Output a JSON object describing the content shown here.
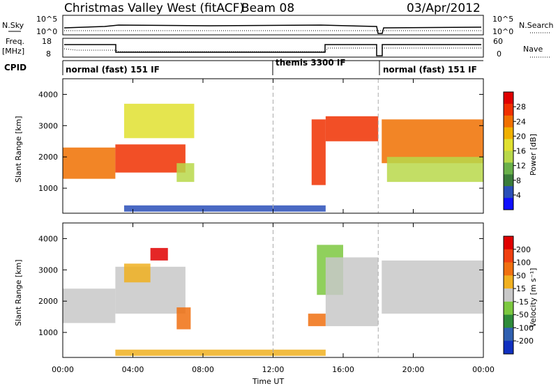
{
  "header": {
    "station": "Christmas Valley West (fitACF)",
    "beam": "Beam 08",
    "date": "03/Apr/2012"
  },
  "summary_panels": {
    "nsky_label": "N.Sky",
    "nsearch_label": "N.Search",
    "noise_ticks": [
      "10^5",
      "10^0"
    ],
    "freq_label_1": "Freq.",
    "freq_label_2": "[MHz]",
    "freq_ticks": [
      "18",
      "8"
    ],
    "nave_label": "Nave",
    "nave_ticks": [
      "60",
      "0"
    ],
    "cpid_label": "CPID",
    "modes": [
      {
        "label": "normal (fast) 151 IF",
        "start_hour": 0,
        "end_hour": 12
      },
      {
        "label": "themis 3300 IF",
        "start_hour": 12,
        "end_hour": 18
      },
      {
        "label": "normal (fast) 151 IF",
        "start_hour": 18,
        "end_hour": 24
      }
    ]
  },
  "chart_data": [
    {
      "type": "heatmap",
      "name": "power",
      "ylabel": "Slant Range [km]",
      "ylim": [
        200,
        4500
      ],
      "yticks": [
        1000,
        2000,
        3000,
        4000
      ],
      "xlim": [
        0,
        24
      ],
      "colorbar_label": "Power [dB]",
      "colorbar_ticks": [
        "28",
        "24",
        "20",
        "16",
        "12",
        "8",
        "4"
      ],
      "colorbar_colors": [
        "#1010ff",
        "#2a4fb8",
        "#3a7c3a",
        "#6ab04a",
        "#b8d84a",
        "#e0e030",
        "#f0b000",
        "#f07000",
        "#f03000",
        "#e00000"
      ],
      "echo_regions": [
        {
          "t": [
            0.0,
            3.0
          ],
          "r": [
            1300,
            2300
          ],
          "level": 7
        },
        {
          "t": [
            3.0,
            7.0
          ],
          "r": [
            1500,
            2400
          ],
          "level": 8
        },
        {
          "t": [
            3.5,
            7.5
          ],
          "r": [
            2600,
            3700
          ],
          "level": 5
        },
        {
          "t": [
            6.5,
            7.5
          ],
          "r": [
            1200,
            1800
          ],
          "level": 4
        },
        {
          "t": [
            14.2,
            15.0
          ],
          "r": [
            1100,
            3200
          ],
          "level": 8
        },
        {
          "t": [
            15.0,
            18.0
          ],
          "r": [
            2500,
            3300
          ],
          "level": 8
        },
        {
          "t": [
            18.2,
            24.0
          ],
          "r": [
            1800,
            3200
          ],
          "level": 7
        },
        {
          "t": [
            18.5,
            24.0
          ],
          "r": [
            1200,
            2000
          ],
          "level": 4
        },
        {
          "t": [
            3.5,
            15.0
          ],
          "r": [
            250,
            450
          ],
          "level": 1
        }
      ]
    },
    {
      "type": "heatmap",
      "name": "velocity",
      "ylabel": "Slant Range [km]",
      "ylim": [
        200,
        4500
      ],
      "yticks": [
        1000,
        2000,
        3000,
        4000
      ],
      "xlim": [
        0,
        24
      ],
      "xlabel": "Time UT",
      "xticks": [
        "00:00",
        "04:00",
        "08:00",
        "12:00",
        "16:00",
        "20:00",
        "00:00"
      ],
      "colorbar_label": "Velocity [m s⁻¹]",
      "colorbar_ticks": [
        "200",
        "100",
        "50",
        "15",
        "-15",
        "-50",
        "-100",
        "-200"
      ],
      "colorbar_colors": [
        "#1030c0",
        "#3060b0",
        "#2e8b3a",
        "#7cc840",
        "#c8c8c8",
        "#f0b020",
        "#f07010",
        "#f04010",
        "#e00000"
      ],
      "echo_regions": [
        {
          "t": [
            0.0,
            3.0
          ],
          "r": [
            1300,
            2400
          ],
          "level": 4
        },
        {
          "t": [
            3.0,
            7.0
          ],
          "r": [
            1600,
            3100
          ],
          "level": 4
        },
        {
          "t": [
            3.5,
            5.0
          ],
          "r": [
            2600,
            3200
          ],
          "level": 5
        },
        {
          "t": [
            5.0,
            6.0
          ],
          "r": [
            3300,
            3700
          ],
          "level": 8
        },
        {
          "t": [
            6.5,
            7.3
          ],
          "r": [
            1100,
            1800
          ],
          "level": 6
        },
        {
          "t": [
            14.0,
            15.0
          ],
          "r": [
            1200,
            1600
          ],
          "level": 6
        },
        {
          "t": [
            14.5,
            16.0
          ],
          "r": [
            2200,
            3800
          ],
          "level": 3
        },
        {
          "t": [
            15.0,
            18.0
          ],
          "r": [
            1200,
            3400
          ],
          "level": 4
        },
        {
          "t": [
            18.2,
            24.0
          ],
          "r": [
            1600,
            3300
          ],
          "level": 4
        },
        {
          "t": [
            3.0,
            15.0
          ],
          "r": [
            250,
            450
          ],
          "level": 5
        }
      ]
    }
  ]
}
